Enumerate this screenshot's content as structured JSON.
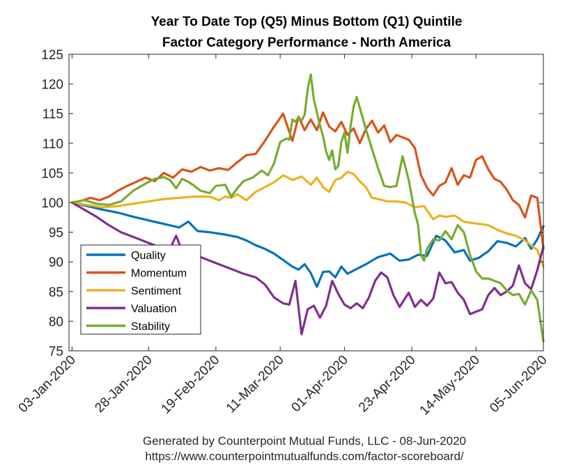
{
  "chart_data": {
    "type": "line",
    "title": [
      "Year To Date Top (Q5) Minus Bottom (Q1) Quintile",
      "Factor Category Performance - North America"
    ],
    "xlabel": "",
    "ylabel": "",
    "ylim": [
      75,
      125
    ],
    "yticks": [
      75,
      80,
      85,
      90,
      95,
      100,
      105,
      110,
      115,
      120,
      125
    ],
    "xlim_day": [
      -1,
      154
    ],
    "xticks": [
      {
        "day": 0,
        "label": "03-Jan-2020"
      },
      {
        "day": 25,
        "label": "28-Jan-2020"
      },
      {
        "day": 47,
        "label": "19-Feb-2020"
      },
      {
        "day": 68,
        "label": "11-Mar-2020"
      },
      {
        "day": 89,
        "label": "01-Apr-2020"
      },
      {
        "day": 111,
        "label": "23-Apr-2020"
      },
      {
        "day": 132,
        "label": "14-May-2020"
      },
      {
        "day": 154,
        "label": "05-Jun-2020"
      }
    ],
    "legend_position": "lower-left",
    "series": [
      {
        "name": "Quality",
        "color": "#0072BD",
        "x": [
          0,
          5,
          10,
          15,
          20,
          25,
          30,
          35,
          38,
          41,
          45,
          50,
          54,
          57,
          60,
          63,
          66,
          69,
          72,
          74,
          76,
          78,
          80,
          82,
          84,
          86,
          88,
          90,
          93,
          96,
          100,
          104,
          107,
          110,
          113,
          116,
          119,
          122,
          125,
          128,
          130,
          133,
          136,
          139,
          142,
          145,
          148,
          150,
          152,
          154
        ],
        "y": [
          100,
          99.4,
          98.8,
          98.3,
          97.6,
          97.0,
          96.4,
          95.8,
          96.8,
          95.2,
          95.0,
          94.6,
          94.2,
          93.6,
          92.8,
          92.2,
          91.4,
          90.3,
          89.2,
          88.7,
          89.6,
          88.1,
          85.8,
          88.3,
          88.4,
          87.4,
          89.2,
          88.0,
          88.8,
          89.6,
          90.8,
          91.4,
          90.2,
          90.4,
          91.2,
          91.0,
          94.4,
          93.6,
          91.6,
          92.0,
          90.2,
          90.7,
          91.8,
          93.5,
          93.2,
          92.6,
          94.0,
          92.2,
          93.8,
          96.0
        ]
      },
      {
        "name": "Momentum",
        "color": "#D95319",
        "x": [
          0,
          3,
          6,
          9,
          12,
          15,
          18,
          21,
          24,
          27,
          30,
          33,
          36,
          39,
          42,
          45,
          48,
          51,
          54,
          57,
          60,
          63,
          66,
          69,
          72,
          74,
          76,
          78,
          80,
          82,
          84,
          86,
          88,
          90,
          92,
          94,
          96,
          98,
          100,
          102,
          104,
          106,
          108,
          110,
          112,
          114,
          116,
          118,
          120,
          122,
          124,
          126,
          128,
          130,
          132,
          134,
          136,
          138,
          140,
          142,
          144,
          146,
          148,
          150,
          152,
          154
        ],
        "y": [
          100,
          100.3,
          100.8,
          100.4,
          101.0,
          102.0,
          102.8,
          103.5,
          104.2,
          103.6,
          105.0,
          104.2,
          105.6,
          105.2,
          106.0,
          105.4,
          105.8,
          105.5,
          106.8,
          108.0,
          108.2,
          110.4,
          112.8,
          115.0,
          110.4,
          114.5,
          112.2,
          114.0,
          112.2,
          115.2,
          112.8,
          112.0,
          113.6,
          111.4,
          112.5,
          110.0,
          112.4,
          113.8,
          111.8,
          113.0,
          110.2,
          111.4,
          111.0,
          110.6,
          109.2,
          104.6,
          102.5,
          101.2,
          102.8,
          103.4,
          105.8,
          103.0,
          104.6,
          104.2,
          107.2,
          107.8,
          105.6,
          104.0,
          103.5,
          102.2,
          100.4,
          99.6,
          97.5,
          101.2,
          100.8,
          92.2
        ]
      },
      {
        "name": "Sentiment",
        "color": "#EDB120",
        "x": [
          0,
          5,
          10,
          15,
          20,
          25,
          30,
          35,
          40,
          45,
          48,
          50,
          52,
          54,
          57,
          60,
          63,
          66,
          69,
          72,
          75,
          78,
          80,
          82,
          84,
          86,
          88,
          90,
          92,
          94,
          96,
          98,
          100,
          103,
          106,
          109,
          112,
          115,
          118,
          120,
          122,
          125,
          128,
          130,
          133,
          136,
          139,
          142,
          145,
          148,
          150,
          152,
          154
        ],
        "y": [
          100,
          99.6,
          99.2,
          99.4,
          99.8,
          100.2,
          100.6,
          100.8,
          101.0,
          101.0,
          100.4,
          101.0,
          100.8,
          101.4,
          100.4,
          101.8,
          102.6,
          103.4,
          104.6,
          103.8,
          104.4,
          103.0,
          104.2,
          102.6,
          101.8,
          103.8,
          104.2,
          105.2,
          104.8,
          103.6,
          102.6,
          100.8,
          100.6,
          100.2,
          100.2,
          100.0,
          99.2,
          99.4,
          97.2,
          97.8,
          97.6,
          97.8,
          96.8,
          96.6,
          96.4,
          96.2,
          95.4,
          94.8,
          94.4,
          93.6,
          92.8,
          92.0,
          89.2
        ]
      },
      {
        "name": "Valuation",
        "color": "#7E2F8E",
        "x": [
          0,
          4,
          8,
          12,
          16,
          20,
          24,
          28,
          32,
          34,
          36,
          40,
          44,
          48,
          52,
          56,
          60,
          63,
          66,
          69,
          71,
          73,
          75,
          77,
          79,
          81,
          83,
          85,
          87,
          89,
          91,
          93,
          95,
          97,
          99,
          101,
          103,
          105,
          107,
          110,
          112,
          114,
          116,
          118,
          120,
          122,
          124,
          126,
          128,
          130,
          132,
          134,
          136,
          138,
          140,
          142,
          144,
          146,
          148,
          150,
          152,
          154
        ],
        "y": [
          100,
          98.8,
          97.6,
          96.2,
          95.0,
          94.2,
          93.4,
          92.6,
          92.2,
          94.4,
          91.8,
          91.2,
          90.4,
          89.6,
          88.8,
          88.0,
          87.4,
          86.2,
          84.0,
          83.0,
          82.8,
          86.8,
          77.8,
          82.0,
          82.6,
          80.6,
          82.6,
          86.8,
          84.6,
          82.8,
          82.2,
          83.0,
          82.2,
          84.0,
          86.8,
          88.2,
          87.4,
          84.4,
          82.4,
          84.8,
          82.4,
          83.6,
          82.6,
          83.8,
          88.2,
          86.4,
          86.6,
          84.8,
          83.6,
          81.2,
          81.6,
          82.0,
          84.4,
          85.6,
          84.4,
          85.0,
          86.0,
          89.4,
          86.4,
          85.4,
          88.6,
          92.6
        ]
      },
      {
        "name": "Stability",
        "color": "#77AC30",
        "x": [
          0,
          4,
          8,
          12,
          16,
          20,
          24,
          27,
          30,
          32,
          34,
          36,
          38,
          40,
          42,
          45,
          47,
          50,
          52,
          54,
          56,
          59,
          62,
          64,
          66,
          68,
          70,
          71,
          72,
          73,
          74,
          75,
          76,
          77,
          78,
          79,
          80,
          81,
          82,
          83,
          84,
          85,
          86,
          87,
          88,
          89,
          90,
          91,
          92,
          93,
          94,
          96,
          98,
          100,
          102,
          104,
          106,
          108,
          110,
          112,
          113,
          114,
          115,
          116,
          118,
          120,
          122,
          124,
          126,
          128,
          130,
          132,
          134,
          136,
          138,
          140,
          142,
          144,
          146,
          148,
          150,
          152,
          154
        ],
        "y": [
          100,
          100.4,
          99.8,
          99.6,
          100.2,
          102.0,
          103.2,
          104.0,
          104.3,
          103.8,
          102.4,
          104.0,
          103.5,
          102.8,
          102.0,
          101.6,
          102.8,
          103.0,
          101.0,
          102.4,
          103.6,
          104.2,
          105.4,
          104.6,
          106.6,
          110.2,
          110.8,
          110.6,
          114.0,
          113.6,
          114.4,
          113.8,
          114.8,
          119.2,
          121.6,
          117.4,
          115.2,
          113.0,
          111.2,
          108.6,
          107.2,
          108.8,
          105.6,
          106.2,
          110.2,
          111.8,
          108.4,
          112.8,
          116.2,
          117.8,
          116.0,
          112.4,
          109.0,
          105.8,
          102.8,
          102.6,
          102.8,
          107.8,
          103.8,
          98.2,
          96.4,
          91.2,
          90.2,
          92.2,
          93.8,
          93.6,
          95.2,
          93.8,
          96.2,
          95.0,
          91.2,
          88.4,
          87.2,
          87.2,
          86.8,
          86.4,
          85.2,
          84.4,
          84.6,
          82.8,
          85.2,
          83.6,
          76.6
        ]
      }
    ]
  },
  "legend": {
    "entries": [
      "Quality",
      "Momentum",
      "Sentiment",
      "Valuation",
      "Stability"
    ]
  },
  "footer": {
    "generated": "Generated by Counterpoint Mutual Funds, LLC - 08-Jun-2020",
    "url": "https://www.counterpointmutualfunds.com/factor-scoreboard/"
  }
}
